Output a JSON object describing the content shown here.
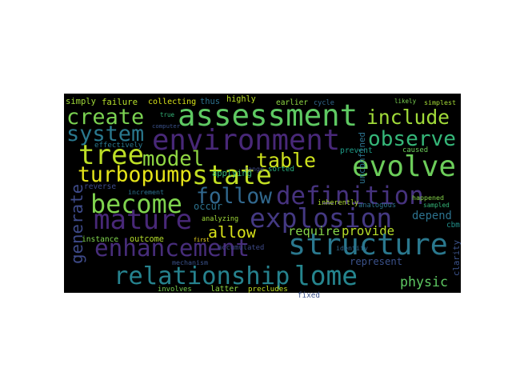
{
  "words": [
    "assessment",
    "environment",
    "create",
    "include",
    "system",
    "observe",
    "tree",
    "evolve",
    "model",
    "table",
    "state",
    "turbopump",
    "definition",
    "become",
    "follow",
    "mature",
    "explosion",
    "allow",
    "require",
    "provide",
    "depend",
    "structure",
    "enhancement",
    "relationship",
    "lome",
    "physic",
    "represent",
    "generate",
    "simply",
    "failure",
    "collecting",
    "thus",
    "highly",
    "earlier",
    "cycle",
    "likely",
    "simplest",
    "true",
    "computer",
    "effectively",
    "applying",
    "range",
    "sorted",
    "caused",
    "prevent",
    "reverse",
    "increment",
    "occur",
    "analyzing",
    "inherently",
    "analogous",
    "sampled",
    "instance",
    "outcome",
    "first",
    "accumulated",
    "mechanism",
    "identify",
    "involves",
    "latter",
    "precludes",
    "fixed",
    "cbm",
    "happened",
    "unconfined",
    "clarity"
  ]
}
